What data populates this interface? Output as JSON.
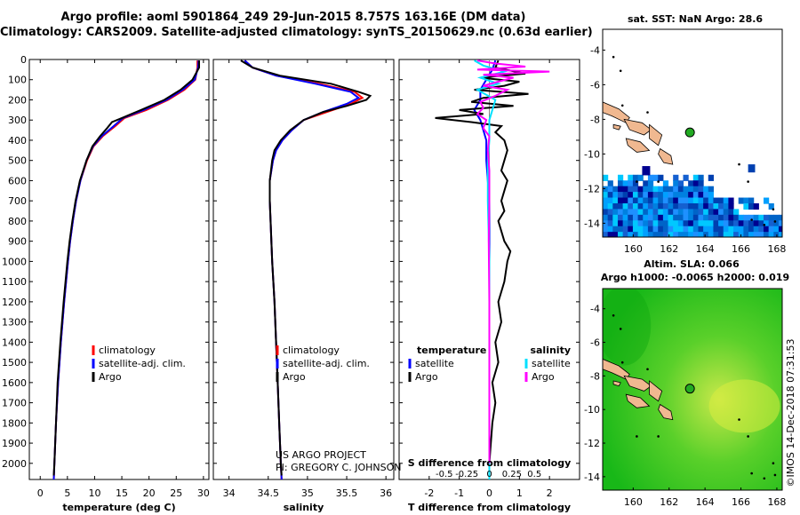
{
  "header": {
    "title_line1": "Argo profile: aoml 5901864_249 29-Jun-2015 8.757S 163.16E (DM data)",
    "title_line2": "Climatology: CARS2009. Satellite-adjusted climatology: synTS_20150629.nc (0.63d earlier)"
  },
  "colors": {
    "climatology": "#ff0000",
    "satellite": "#0000ff",
    "argo": "#000000",
    "satellite_s": "#00e0ff",
    "argo_s": "#ff00ff"
  },
  "credits": {
    "line1": "US ARGO PROJECT",
    "line2": "PI: GREGORY C. JOHNSON"
  },
  "watermark": "©IMOS 14-Dec-2018 07:31:53",
  "chart_data": [
    {
      "type": "line",
      "id": "temperature",
      "xlabel": "temperature (deg C)",
      "ylabel": "",
      "xlim": [
        -2,
        31
      ],
      "ylim": [
        2080,
        0
      ],
      "xticks": [
        "0",
        "5",
        "10",
        "15",
        "20",
        "25",
        "30"
      ],
      "xtick_values": [
        0,
        5,
        10,
        15,
        20,
        25,
        30
      ],
      "yticks": [
        "0",
        "100",
        "200",
        "300",
        "400",
        "500",
        "600",
        "700",
        "800",
        "900",
        "1000",
        "1100",
        "1200",
        "1300",
        "1400",
        "1500",
        "1600",
        "1700",
        "1800",
        "1900",
        "2000"
      ],
      "ytick_values": [
        0,
        100,
        200,
        300,
        400,
        500,
        600,
        700,
        800,
        900,
        1000,
        1100,
        1200,
        1300,
        1400,
        1500,
        1600,
        1700,
        1800,
        1900,
        2000
      ],
      "legend": [
        "climatology",
        "satellite-adj. clim.",
        "Argo"
      ],
      "legend_position": "bottom-right",
      "series": [
        {
          "name": "climatology",
          "color": "#ff0000",
          "depth": [
            5,
            40,
            100,
            150,
            200,
            250,
            290,
            330,
            380,
            430,
            500,
            600,
            700,
            800,
            900,
            1000,
            1200,
            1400,
            1600,
            1800,
            2000,
            2080
          ],
          "values": [
            28.9,
            28.9,
            28.5,
            26.5,
            23.5,
            19.5,
            15.5,
            13.8,
            11.5,
            9.8,
            8.6,
            7.4,
            6.6,
            6.0,
            5.5,
            5.1,
            4.4,
            3.8,
            3.3,
            2.9,
            2.6,
            2.5
          ]
        },
        {
          "name": "satellite-adj. clim.",
          "color": "#0000ff",
          "depth": [
            5,
            40,
            100,
            150,
            200,
            250,
            290,
            330,
            380,
            430,
            500,
            600,
            700,
            800,
            900,
            1000,
            1200,
            1400,
            1600,
            1800,
            2000,
            2080
          ],
          "values": [
            29.1,
            29.0,
            28.4,
            26.2,
            23.2,
            19.0,
            15.2,
            13.5,
            11.3,
            9.7,
            8.5,
            7.4,
            6.6,
            6.0,
            5.5,
            5.1,
            4.4,
            3.8,
            3.3,
            2.9,
            2.6,
            2.5
          ]
        },
        {
          "name": "Argo",
          "color": "#000000",
          "depth": [
            5,
            40,
            100,
            150,
            200,
            250,
            290,
            310,
            340,
            380,
            430,
            500,
            600,
            700,
            800,
            900,
            1000,
            1200,
            1400,
            1600,
            1800,
            2000,
            2060
          ],
          "values": [
            29.2,
            29.2,
            28.0,
            25.8,
            22.8,
            18.5,
            15.0,
            13.2,
            12.3,
            11.0,
            9.6,
            8.5,
            7.3,
            6.5,
            5.9,
            5.4,
            5.0,
            4.3,
            3.7,
            3.2,
            2.9,
            2.6,
            2.5
          ]
        }
      ]
    },
    {
      "type": "line",
      "id": "salinity",
      "xlabel": "salinity",
      "xlim": [
        33.8,
        36.1
      ],
      "ylim": [
        2080,
        0
      ],
      "xticks": [
        "34",
        "34.5",
        "35",
        "35.5",
        "36"
      ],
      "xtick_values": [
        34,
        34.5,
        35,
        35.5,
        36
      ],
      "legend": [
        "climatology",
        "satellite-adj. clim.",
        "Argo"
      ],
      "legend_position": "bottom-right",
      "series": [
        {
          "name": "climatology",
          "color": "#ff0000",
          "depth": [
            5,
            40,
            80,
            120,
            160,
            190,
            220,
            260,
            300,
            350,
            400,
            450,
            500,
            600,
            700,
            800,
            900,
            1000,
            1200,
            1400,
            1600,
            1800,
            2000,
            2080
          ],
          "values": [
            34.2,
            34.3,
            34.6,
            35.15,
            35.6,
            35.7,
            35.55,
            35.25,
            34.95,
            34.8,
            34.68,
            34.6,
            34.56,
            34.52,
            34.52,
            34.53,
            34.54,
            34.55,
            34.58,
            34.6,
            34.62,
            34.64,
            34.66,
            34.67
          ]
        },
        {
          "name": "satellite-adj. clim.",
          "color": "#0000ff",
          "depth": [
            5,
            40,
            80,
            120,
            160,
            190,
            220,
            260,
            300,
            350,
            400,
            450,
            500,
            600,
            700,
            800,
            900,
            1000,
            1200,
            1400,
            1600,
            1800,
            2000,
            2080
          ],
          "values": [
            34.2,
            34.3,
            34.6,
            35.1,
            35.55,
            35.65,
            35.5,
            35.2,
            34.95,
            34.8,
            34.68,
            34.6,
            34.56,
            34.52,
            34.52,
            34.53,
            34.54,
            34.55,
            34.58,
            34.6,
            34.62,
            34.64,
            34.66,
            34.67
          ]
        },
        {
          "name": "Argo",
          "color": "#000000",
          "depth": [
            5,
            40,
            80,
            120,
            160,
            180,
            200,
            230,
            260,
            300,
            350,
            400,
            450,
            500,
            600,
            700,
            800,
            900,
            1000,
            1200,
            1400,
            1600,
            1800,
            2000,
            2060
          ],
          "values": [
            34.15,
            34.3,
            34.65,
            35.3,
            35.65,
            35.8,
            35.75,
            35.5,
            35.2,
            34.95,
            34.78,
            34.66,
            34.58,
            34.55,
            34.52,
            34.52,
            34.53,
            34.54,
            34.55,
            34.58,
            34.6,
            34.62,
            34.64,
            34.66,
            34.67
          ]
        }
      ]
    },
    {
      "type": "line",
      "id": "difference",
      "xlabel": "T difference from climatology",
      "xlabel_top": "S difference from climatology",
      "xlim": [
        -3,
        3
      ],
      "ylim": [
        2080,
        0
      ],
      "xticks": [
        "-2",
        "-1",
        "0",
        "1",
        "2"
      ],
      "xtick_values": [
        -2,
        -1,
        0,
        1,
        2
      ],
      "sticks": [
        "-0.5",
        "-0.25",
        "0",
        "0.25",
        "0.5"
      ],
      "stick_values": [
        -1.5,
        -0.75,
        0,
        0.75,
        1.5
      ],
      "legend_left_title": "temperature",
      "legend_left": [
        "satellite",
        "Argo"
      ],
      "legend_right_title": "salinity",
      "legend_right": [
        "satellite",
        "Argo"
      ],
      "series": [
        {
          "name": "T satellite",
          "color": "#0000ff",
          "depth": [
            5,
            50,
            100,
            150,
            200,
            250,
            300,
            400,
            500,
            700,
            1000,
            1500,
            2000,
            2080
          ],
          "values": [
            0.2,
            0.1,
            -0.1,
            -0.3,
            -0.3,
            -0.5,
            -0.3,
            -0.1,
            -0.1,
            0,
            0,
            0,
            0,
            0
          ]
        },
        {
          "name": "T Argo",
          "color": "#000000",
          "depth": [
            5,
            40,
            70,
            90,
            110,
            130,
            150,
            170,
            190,
            210,
            230,
            250,
            270,
            290,
            310,
            330,
            360,
            400,
            450,
            500,
            550,
            600,
            650,
            700,
            750,
            800,
            850,
            900,
            950,
            1000,
            1100,
            1200,
            1300,
            1400,
            1500,
            1600,
            1700,
            1800,
            1900,
            2000,
            2060
          ],
          "values": [
            0.3,
            0.2,
            1.2,
            -0.3,
            1.0,
            0.5,
            -0.5,
            1.3,
            -0.2,
            -0.6,
            0.8,
            -1.0,
            -0.2,
            -1.8,
            -0.6,
            0.4,
            0.2,
            0.5,
            0.6,
            0.5,
            0.4,
            0.6,
            0.5,
            0.4,
            0.5,
            0.3,
            0.4,
            0.5,
            0.7,
            0.6,
            0.5,
            0.3,
            0.4,
            0.2,
            0.3,
            0.1,
            0.2,
            0.1,
            0.05,
            0.0,
            0.0
          ]
        },
        {
          "name": "S satellite",
          "color": "#00e0ff",
          "depth": [
            5,
            30,
            60,
            90,
            120,
            150,
            200,
            250,
            300,
            400,
            500,
            700,
            1000,
            1500,
            2000,
            2080
          ],
          "values": [
            -0.5,
            -0.2,
            0.5,
            -0.3,
            0.3,
            -0.4,
            0.2,
            0.1,
            0.0,
            0.0,
            -0.05,
            -0.05,
            0.0,
            0.0,
            0.0,
            0.0
          ]
        },
        {
          "name": "S Argo",
          "color": "#ff00ff",
          "depth": [
            5,
            20,
            35,
            50,
            60,
            75,
            90,
            110,
            130,
            150,
            180,
            210,
            240,
            270,
            300,
            340,
            380,
            450,
            550,
            700,
            900,
            1200,
            1500,
            2000
          ],
          "values": [
            -0.4,
            0.2,
            1.2,
            -0.4,
            2.0,
            -0.2,
            0.8,
            0.3,
            -0.2,
            0.6,
            0.2,
            -0.3,
            -0.2,
            -0.4,
            -0.1,
            -0.2,
            0.0,
            -0.05,
            0.0,
            0.0,
            -0.02,
            0.0,
            0.0,
            0.0
          ]
        }
      ]
    },
    {
      "type": "heatmap",
      "id": "sst_map",
      "title": "sat. SST: NaN Argo: 28.6",
      "xlim": [
        158.3,
        168.3
      ],
      "ylim": [
        -14.8,
        -2.8
      ],
      "xticks": [
        "160",
        "162",
        "164",
        "166",
        "168"
      ],
      "xtick_values": [
        160,
        162,
        164,
        166,
        168
      ],
      "yticks": [
        "-4",
        "-6",
        "-8",
        "-10",
        "-12",
        "-14"
      ],
      "ytick_values": [
        -4,
        -6,
        -8,
        -10,
        -12,
        -14
      ],
      "float_lon": 163.16,
      "float_lat": -8.757
    },
    {
      "type": "heatmap",
      "id": "sla_map",
      "title": "Altim. SLA: 0.066",
      "subtitle": "Argo h1000: -0.0065 h2000: 0.019",
      "xlim": [
        158.3,
        168.3
      ],
      "ylim": [
        -14.8,
        -2.8
      ],
      "xticks": [
        "160",
        "162",
        "164",
        "166",
        "168"
      ],
      "xtick_values": [
        160,
        162,
        164,
        166,
        168
      ],
      "yticks": [
        "-4",
        "-6",
        "-8",
        "-10",
        "-12",
        "-14"
      ],
      "ytick_values": [
        -4,
        -6,
        -8,
        -10,
        -12,
        -14
      ],
      "float_lon": 163.16,
      "float_lat": -8.757
    }
  ]
}
